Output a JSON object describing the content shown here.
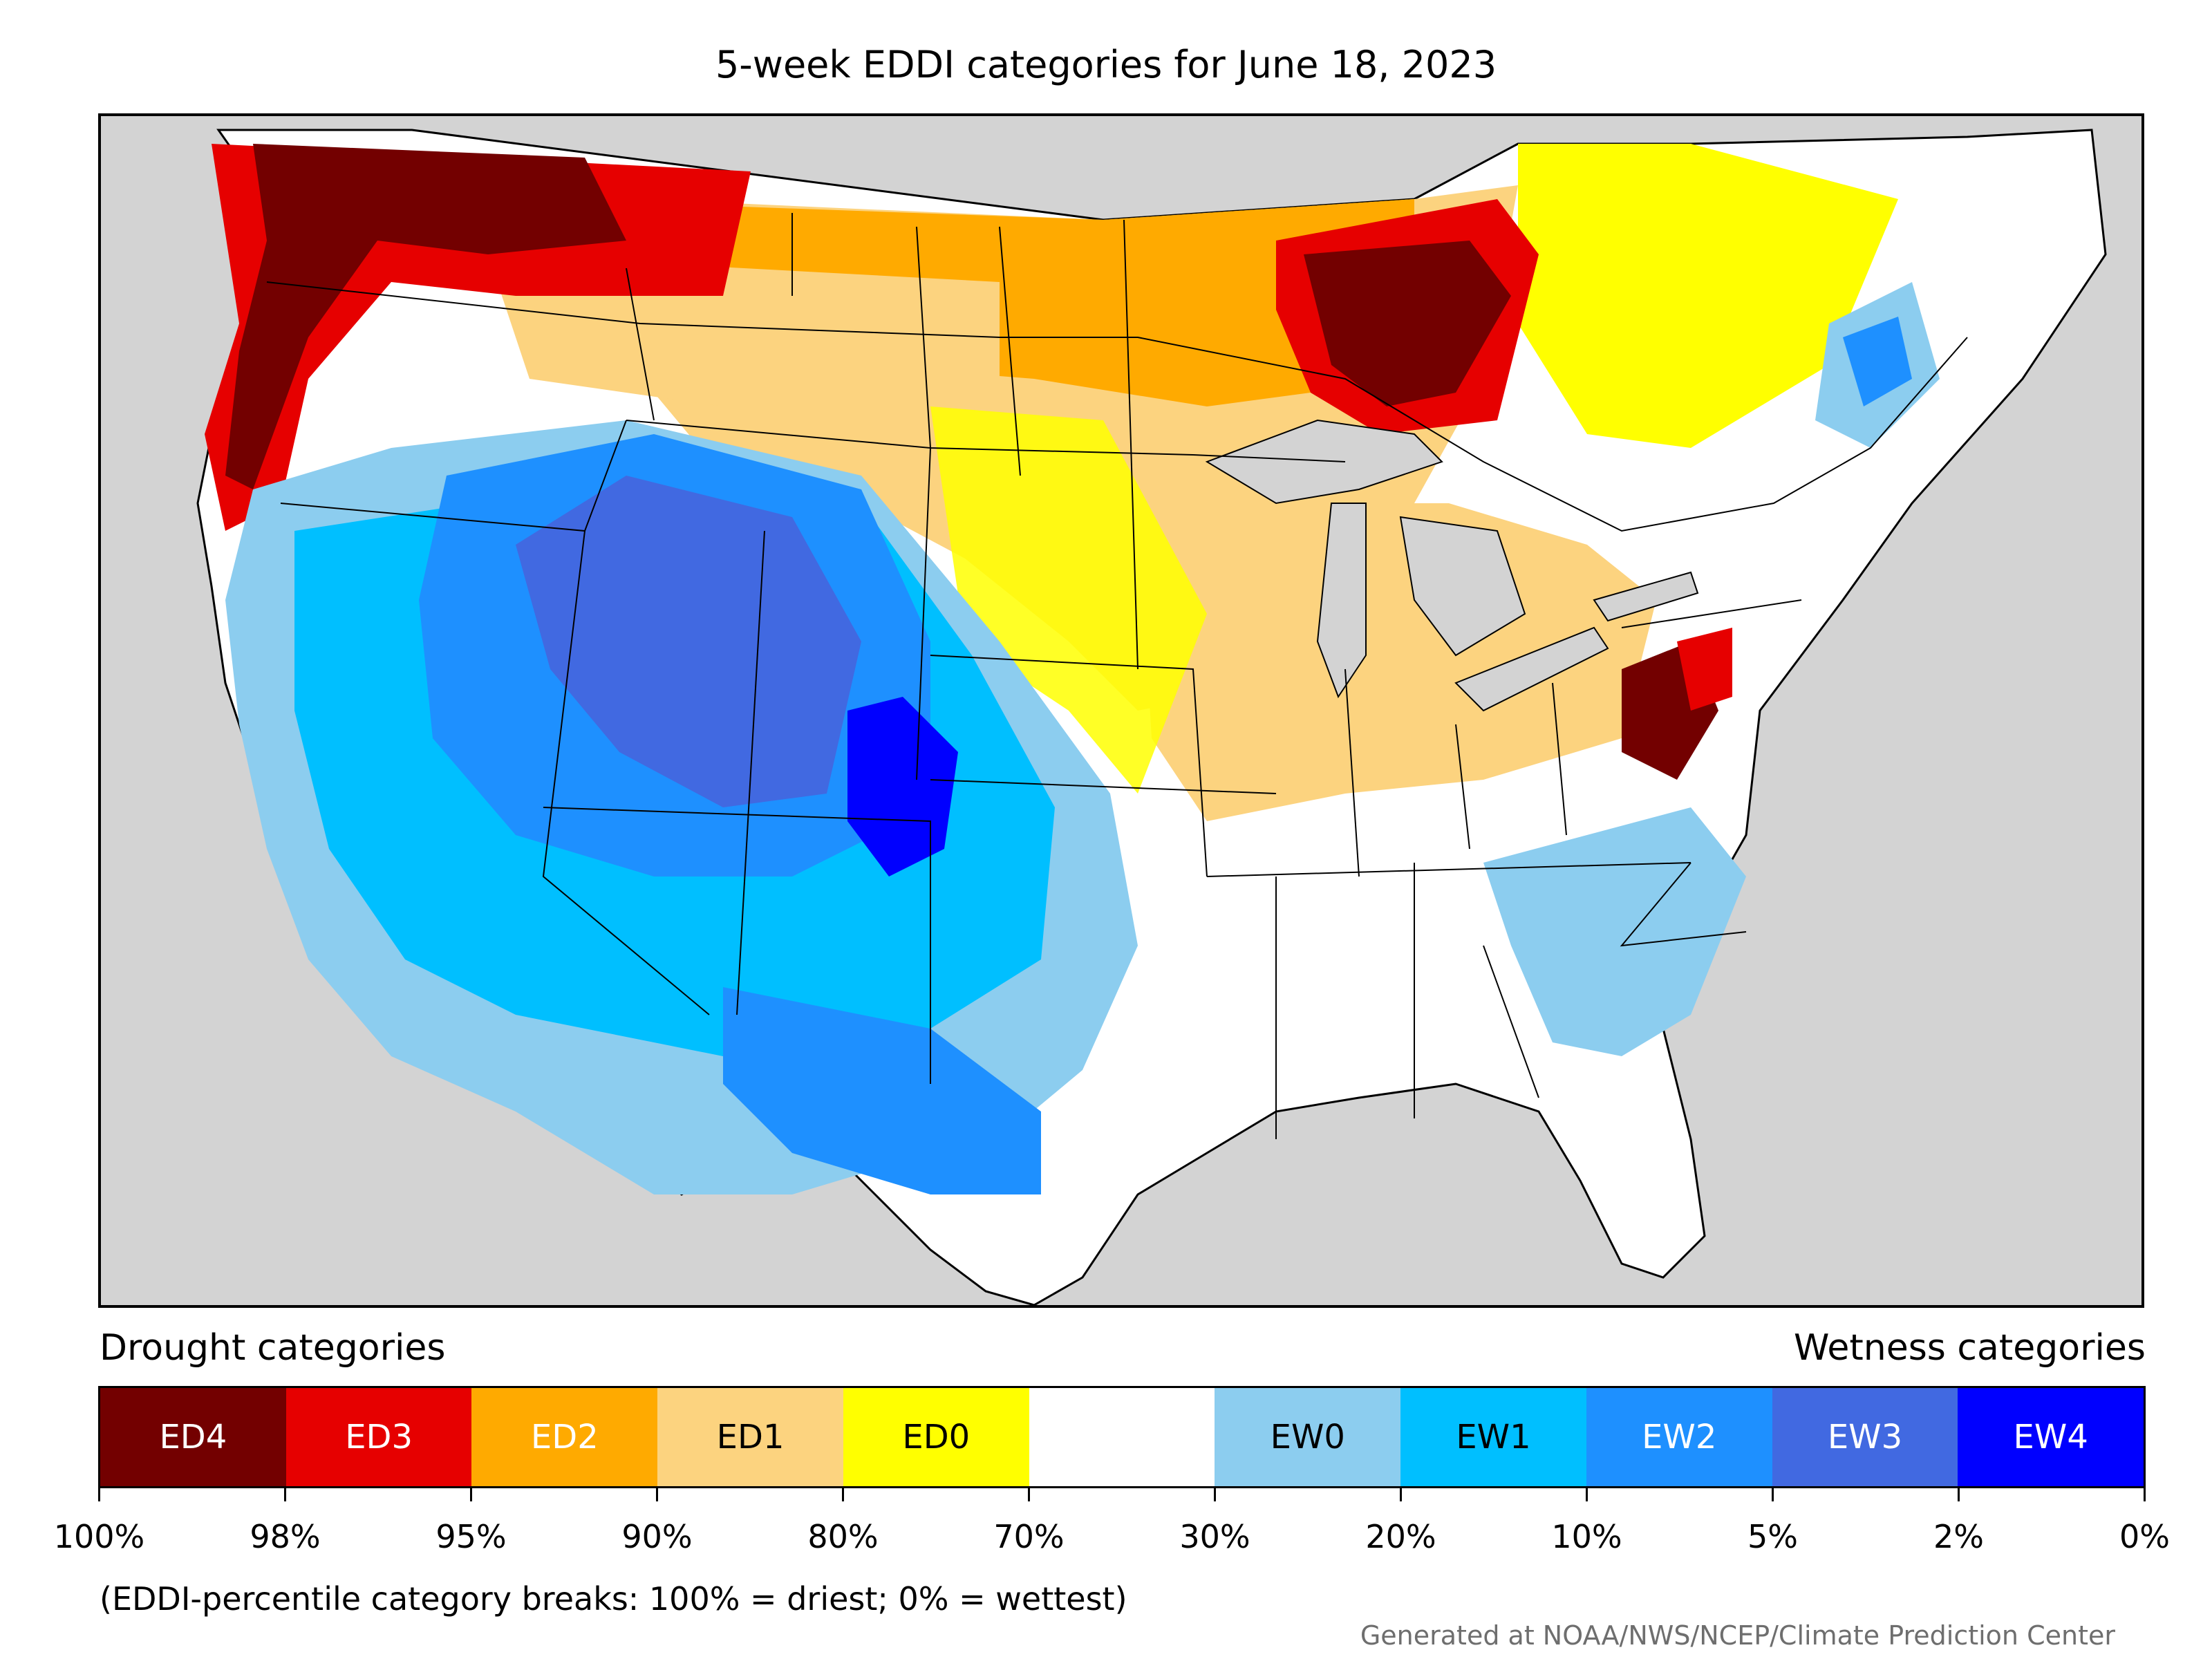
{
  "title": "5-week EDDI categories for June 18, 2023",
  "map": {
    "region": "Contiguous United States",
    "ocean_color": "#d3d3d3",
    "land_color": "#ffffff",
    "boundary_color": "#000000"
  },
  "legend": {
    "left_heading": "Drought categories",
    "right_heading": "Wetness categories",
    "categories": [
      {
        "label": "ED4",
        "color": "#730000",
        "text_color": "#ffffff"
      },
      {
        "label": "ED3",
        "color": "#e60000",
        "text_color": "#ffffff"
      },
      {
        "label": "ED2",
        "color": "#ffaa00",
        "text_color": "#ffffff"
      },
      {
        "label": "ED1",
        "color": "#fcd37f",
        "text_color": "#000000"
      },
      {
        "label": "ED0",
        "color": "#ffff00",
        "text_color": "#000000"
      },
      {
        "label": "",
        "color": "#ffffff",
        "text_color": "#000000"
      },
      {
        "label": "EW0",
        "color": "#8ccdef",
        "text_color": "#000000"
      },
      {
        "label": "EW1",
        "color": "#00bfff",
        "text_color": "#000000"
      },
      {
        "label": "EW2",
        "color": "#1e90ff",
        "text_color": "#ffffff"
      },
      {
        "label": "EW3",
        "color": "#4169e1",
        "text_color": "#ffffff"
      },
      {
        "label": "EW4",
        "color": "#0000ff",
        "text_color": "#ffffff"
      }
    ],
    "breaks": [
      "100%",
      "98%",
      "95%",
      "90%",
      "80%",
      "70%",
      "30%",
      "20%",
      "10%",
      "5%",
      "2%",
      "0%"
    ]
  },
  "note": "(EDDI-percentile category breaks: 100% = driest; 0% = wettest)",
  "credit": "Generated at NOAA/NWS/NCEP/Climate Prediction Center"
}
